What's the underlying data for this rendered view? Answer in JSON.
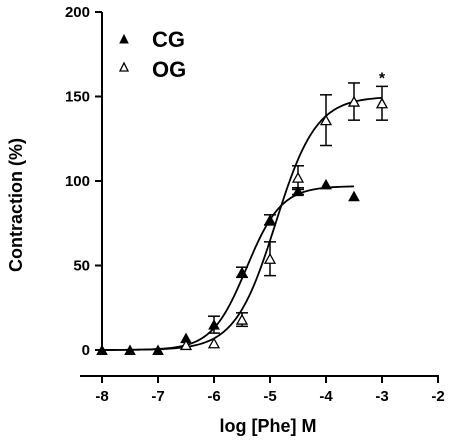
{
  "chart_data": {
    "type": "scatter",
    "xlabel": "log [Phe] M",
    "ylabel": "Contraction (%)",
    "xlim": [
      -8,
      -2
    ],
    "ylim": [
      0,
      200
    ],
    "xticks": [
      -8,
      -7,
      -6,
      -5,
      -4,
      -3,
      -2
    ],
    "yticks": [
      0,
      50,
      100,
      150,
      200
    ],
    "legend_position": "top-left",
    "series": [
      {
        "name": "CG",
        "marker": "filled-triangle",
        "points": [
          {
            "x": -8.0,
            "y": 0,
            "err": 0
          },
          {
            "x": -7.5,
            "y": 0,
            "err": 0
          },
          {
            "x": -7.0,
            "y": 0,
            "err": 0
          },
          {
            "x": -6.5,
            "y": 7,
            "err": 0
          },
          {
            "x": -6.0,
            "y": 15,
            "err": 5
          },
          {
            "x": -5.5,
            "y": 46,
            "err": 3
          },
          {
            "x": -5.0,
            "y": 77,
            "err": 3
          },
          {
            "x": -4.5,
            "y": 94,
            "err": 2
          },
          {
            "x": -4.0,
            "y": 98,
            "err": 0
          },
          {
            "x": -3.5,
            "y": 91,
            "err": 0
          }
        ],
        "fit": {
          "bottom": 0,
          "top": 97,
          "logEC50": -5.42,
          "hill": 1.4,
          "x_range": [
            -8,
            -3.5
          ]
        }
      },
      {
        "name": "OG",
        "marker": "open-triangle",
        "points": [
          {
            "x": -6.5,
            "y": 3,
            "err": 0
          },
          {
            "x": -6.0,
            "y": 4,
            "err": 0
          },
          {
            "x": -5.5,
            "y": 18,
            "err": 4
          },
          {
            "x": -5.0,
            "y": 54,
            "err": 10
          },
          {
            "x": -4.5,
            "y": 102,
            "err": 7
          },
          {
            "x": -4.0,
            "y": 136,
            "err": 15
          },
          {
            "x": -3.5,
            "y": 147,
            "err": 11
          },
          {
            "x": -3.0,
            "y": 146,
            "err": 10
          }
        ],
        "fit": {
          "bottom": 0,
          "top": 150,
          "logEC50": -4.9,
          "hill": 1.2,
          "x_range": [
            -8,
            -3.0
          ]
        }
      }
    ],
    "annotations": [
      {
        "text": "*",
        "x": -3.0,
        "y": 160
      }
    ]
  }
}
